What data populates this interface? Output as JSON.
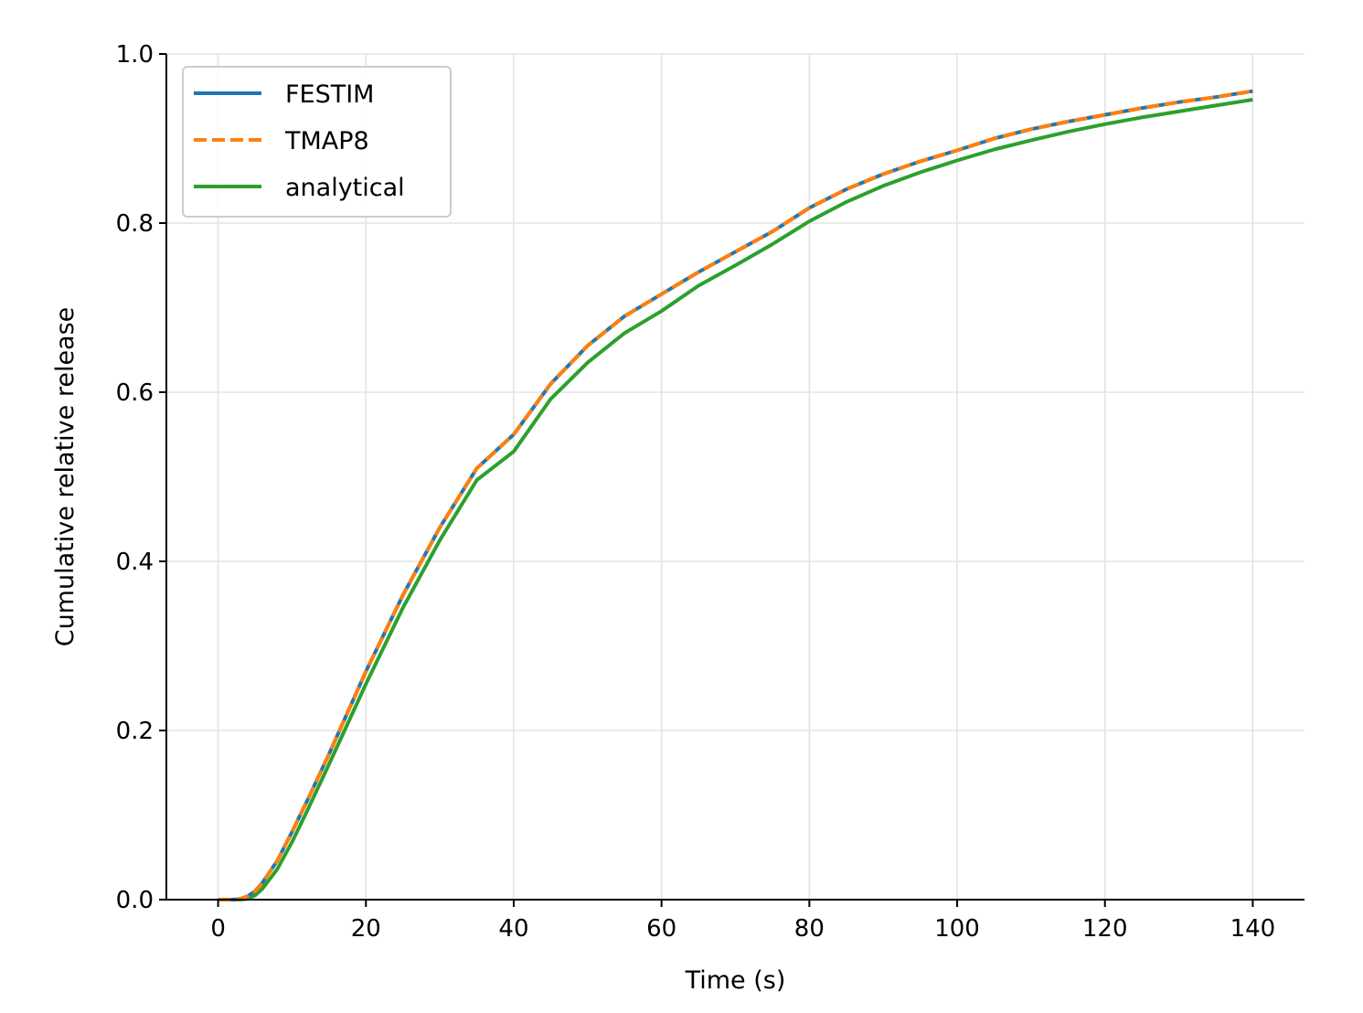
{
  "chart_data": {
    "type": "line",
    "xlabel": "Time (s)",
    "ylabel": "Cumulative relative release",
    "xlim": [
      -7,
      147
    ],
    "ylim": [
      0,
      1.0
    ],
    "xticks": [
      0,
      20,
      40,
      60,
      80,
      100,
      120,
      140
    ],
    "yticks": [
      0.0,
      0.2,
      0.4,
      0.6,
      0.8,
      1.0
    ],
    "xtick_labels": [
      "0",
      "20",
      "40",
      "60",
      "80",
      "100",
      "120",
      "140"
    ],
    "ytick_labels": [
      "0.0",
      "0.2",
      "0.4",
      "0.6",
      "0.8",
      "1.0"
    ],
    "grid": true,
    "legend_position": "top-left",
    "series": [
      {
        "name": "FESTIM",
        "color": "#1f77b4",
        "style": "solid",
        "x": [
          0,
          2,
          3,
          4,
          5,
          6,
          8,
          10,
          12,
          15,
          20,
          25,
          30,
          35,
          40,
          45,
          50,
          55,
          60,
          65,
          70,
          75,
          80,
          85,
          90,
          95,
          100,
          105,
          110,
          115,
          120,
          125,
          130,
          135,
          140
        ],
        "y": [
          0,
          0,
          0.001,
          0.004,
          0.01,
          0.02,
          0.046,
          0.08,
          0.116,
          0.172,
          0.27,
          0.36,
          0.44,
          0.51,
          0.55,
          0.61,
          0.655,
          0.69,
          0.716,
          0.742,
          0.766,
          0.79,
          0.818,
          0.84,
          0.858,
          0.873,
          0.886,
          0.9,
          0.911,
          0.92,
          0.928,
          0.936,
          0.943,
          0.949,
          0.956
        ]
      },
      {
        "name": "TMAP8",
        "color": "#ff7f0e",
        "style": "dashed",
        "x": [
          0,
          2,
          3,
          4,
          5,
          6,
          8,
          10,
          12,
          15,
          20,
          25,
          30,
          35,
          40,
          45,
          50,
          55,
          60,
          65,
          70,
          75,
          80,
          85,
          90,
          95,
          100,
          105,
          110,
          115,
          120,
          125,
          130,
          135,
          140
        ],
        "y": [
          0,
          0,
          0.001,
          0.004,
          0.01,
          0.02,
          0.046,
          0.08,
          0.116,
          0.172,
          0.27,
          0.36,
          0.44,
          0.51,
          0.55,
          0.61,
          0.655,
          0.69,
          0.716,
          0.742,
          0.766,
          0.79,
          0.818,
          0.84,
          0.858,
          0.873,
          0.886,
          0.9,
          0.911,
          0.92,
          0.928,
          0.936,
          0.943,
          0.949,
          0.956
        ]
      },
      {
        "name": "analytical",
        "color": "#2ca02c",
        "style": "solid",
        "x": [
          0,
          2,
          3,
          4,
          5,
          6,
          8,
          10,
          12,
          15,
          20,
          25,
          30,
          35,
          40,
          45,
          50,
          55,
          60,
          65,
          70,
          75,
          80,
          85,
          90,
          95,
          100,
          105,
          110,
          115,
          120,
          125,
          130,
          135,
          140
        ],
        "y": [
          0,
          0,
          0,
          0.001,
          0.005,
          0.013,
          0.036,
          0.068,
          0.104,
          0.16,
          0.255,
          0.345,
          0.425,
          0.496,
          0.53,
          0.592,
          0.635,
          0.67,
          0.696,
          0.726,
          0.75,
          0.775,
          0.802,
          0.825,
          0.844,
          0.86,
          0.874,
          0.887,
          0.898,
          0.908,
          0.917,
          0.925,
          0.932,
          0.939,
          0.946
        ]
      }
    ]
  }
}
